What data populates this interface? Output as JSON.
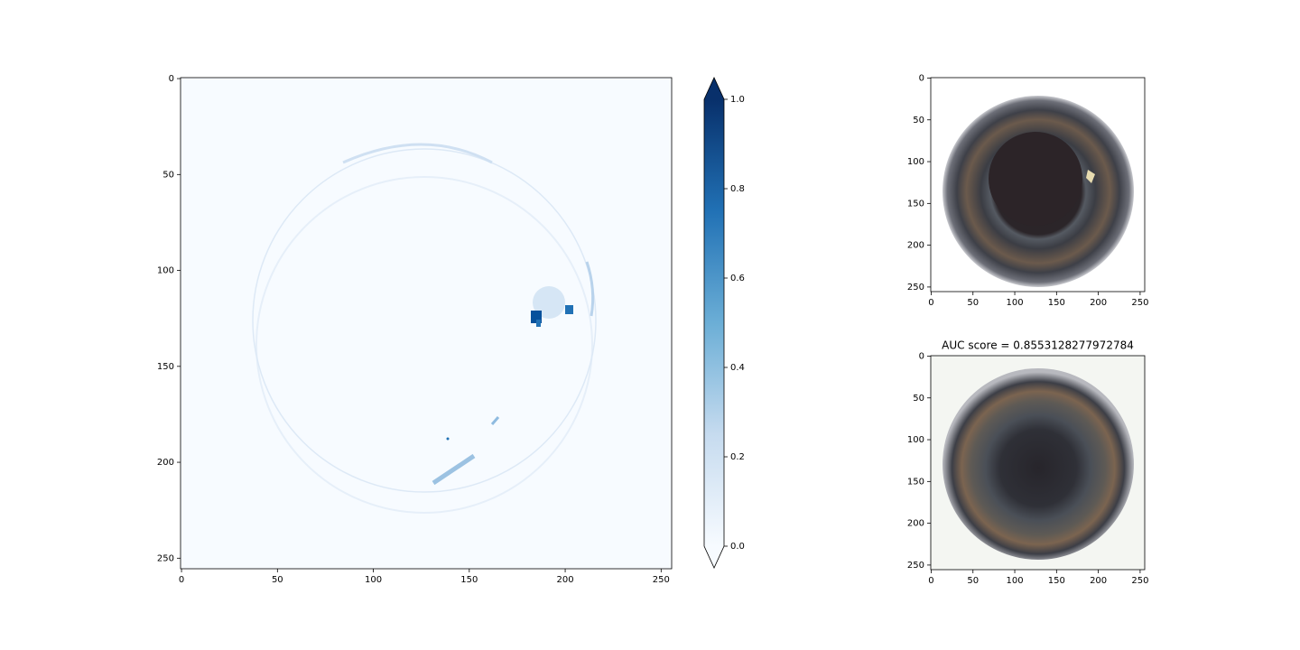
{
  "chart_data": [
    {
      "type": "heatmap",
      "xlim": [
        -0.5,
        255.5
      ],
      "ylim": [
        255.5,
        -0.5
      ],
      "xticks": [
        0,
        50,
        100,
        150,
        200,
        250
      ],
      "yticks": [
        0,
        50,
        100,
        150,
        200,
        250
      ],
      "colorbar": {
        "colormap": "Blues",
        "extend": "both",
        "clim": [
          0,
          1
        ],
        "ticks": [
          {
            "value": 0,
            "label": "0.0"
          },
          {
            "value": 0.2,
            "label": "0.2"
          },
          {
            "value": 0.4,
            "label": "0.4"
          },
          {
            "value": 0.6,
            "label": "0.6"
          },
          {
            "value": 0.8,
            "label": "0.8"
          },
          {
            "value": 1,
            "label": "1.0"
          }
        ]
      }
    },
    {
      "type": "image",
      "xlim": [
        -0.5,
        255.5
      ],
      "ylim": [
        255.5,
        -0.5
      ],
      "xticks": [
        0,
        50,
        100,
        150,
        200,
        250
      ],
      "yticks": [
        0,
        50,
        100,
        150,
        200,
        250
      ]
    },
    {
      "type": "image",
      "title": "AUC score = 0.8553128277972784",
      "xlim": [
        -0.5,
        255.5
      ],
      "ylim": [
        255.5,
        -0.5
      ],
      "xticks": [
        0,
        50,
        100,
        150,
        200,
        250
      ],
      "yticks": [
        0,
        50,
        100,
        150,
        200,
        250
      ]
    }
  ]
}
